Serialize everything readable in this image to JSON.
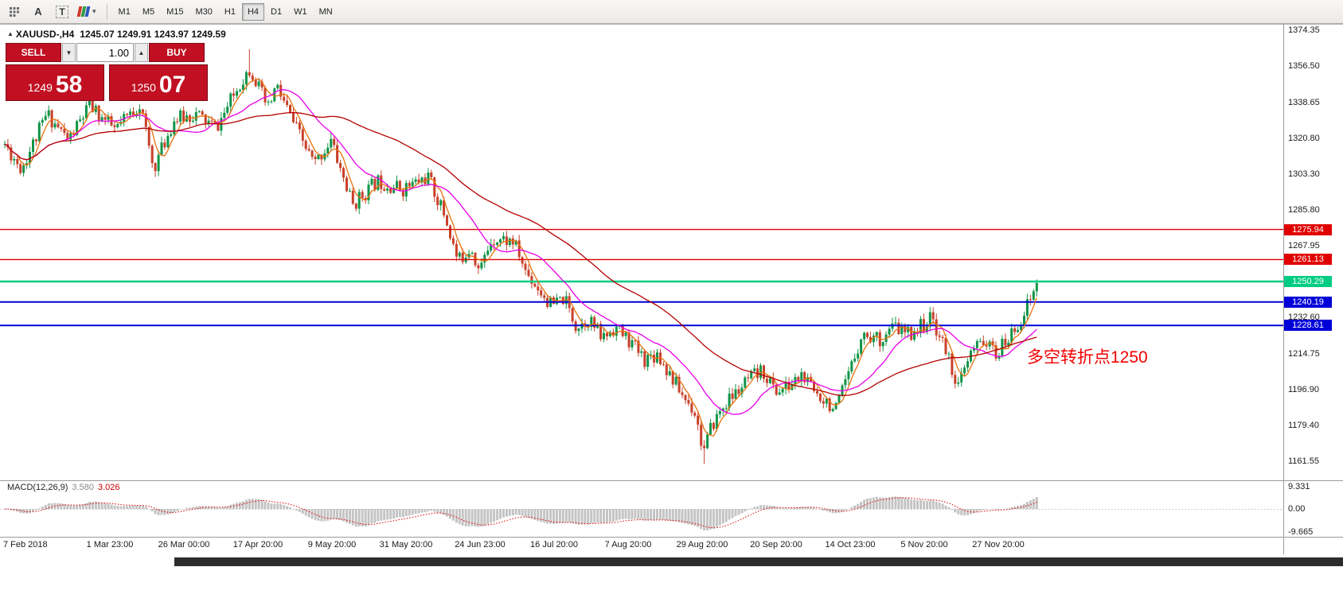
{
  "toolbar": {
    "pointer_label": "A",
    "text_label": "T",
    "timeframes": [
      "M1",
      "M5",
      "M15",
      "M30",
      "H1",
      "H4",
      "D1",
      "W1",
      "MN"
    ],
    "active_timeframe": "H4"
  },
  "header": {
    "symbol_text": "XAUUSD-,H4",
    "ohlc_text": "1245.07 1249.91 1243.97 1249.59"
  },
  "trade_panel": {
    "sell_label": "SELL",
    "buy_label": "BUY",
    "volume": "1.00",
    "bid_small": "1249",
    "bid_big": "58",
    "ask_small": "1250",
    "ask_big": "07"
  },
  "annotation": {
    "text": "多空转折点1250",
    "color": "#f20000"
  },
  "chart_data": {
    "type": "candlestick",
    "symbol": "XAUUSD-",
    "timeframe": "H4",
    "header_ohlc": {
      "open": 1245.07,
      "high": 1249.91,
      "low": 1243.97,
      "close": 1249.59
    },
    "last_close": 1249.59,
    "candle_count": 330,
    "colors": {
      "up": "#0f9447",
      "down": "#c8402a",
      "ma_fast": "#e8720e",
      "ma_mid": "#e800e8",
      "ma_slow": "#b40000",
      "hist": "#c4c4c4",
      "macd_signal": "#dd0000"
    },
    "y_axis": {
      "min": 1161.55,
      "max": 1374.35,
      "labels": [
        {
          "text": "1374.35",
          "price": 1374.35
        },
        {
          "text": "1356.50",
          "price": 1356.5
        },
        {
          "text": "1338.65",
          "price": 1338.65
        },
        {
          "text": "1320.80",
          "price": 1320.8
        },
        {
          "text": "1303.30",
          "price": 1303.3
        },
        {
          "text": "1285.80",
          "price": 1285.8
        },
        {
          "text": "1267.95",
          "price": 1267.95
        },
        {
          "text": "1232.60",
          "price": 1232.6
        },
        {
          "text": "1214.75",
          "price": 1214.75
        },
        {
          "text": "1196.90",
          "price": 1196.9
        },
        {
          "text": "1179.40",
          "price": 1179.4
        },
        {
          "text": "1161.55",
          "price": 1161.55
        }
      ]
    },
    "x_axis_labels": [
      "7 Feb 2018",
      "1 Mar 23:00",
      "26 Mar 00:00",
      "17 Apr 20:00",
      "9 May 20:00",
      "31 May 20:00",
      "24 Jun 23:00",
      "16 Jul 20:00",
      "7 Aug 20:00",
      "29 Aug 20:00",
      "20 Sep 20:00",
      "14 Oct 23:00",
      "5 Nov 20:00",
      "27 Nov 20:00"
    ],
    "levels": [
      {
        "label": "1275.94",
        "price": 1275.94,
        "color": "#e00000",
        "width": 1.4
      },
      {
        "label": "1261.13",
        "price": 1261.13,
        "color": "#e00000",
        "width": 1.4
      },
      {
        "label": "1250.29",
        "price": 1250.29,
        "color": "#00cc83",
        "width": 2.5
      },
      {
        "label": "1240.19",
        "price": 1240.19,
        "color": "#0000d8",
        "width": 2
      },
      {
        "label": "1228.61",
        "price": 1228.61,
        "color": "#0000d8",
        "width": 2
      }
    ],
    "moving_averages": [
      {
        "name": "fast",
        "window": 5,
        "color_key": "ma_fast"
      },
      {
        "name": "medium",
        "window": 18,
        "color_key": "ma_mid"
      },
      {
        "name": "slow",
        "window": 55,
        "color_key": "ma_slow"
      }
    ],
    "price_path": [
      [
        0.0,
        1318
      ],
      [
        0.016,
        1306
      ],
      [
        0.041,
        1333
      ],
      [
        0.062,
        1320
      ],
      [
        0.082,
        1337
      ],
      [
        0.107,
        1325
      ],
      [
        0.131,
        1338
      ],
      [
        0.144,
        1306
      ],
      [
        0.164,
        1330
      ],
      [
        0.185,
        1333
      ],
      [
        0.205,
        1326
      ],
      [
        0.23,
        1350
      ],
      [
        0.238,
        1356
      ],
      [
        0.255,
        1335
      ],
      [
        0.263,
        1347
      ],
      [
        0.283,
        1325
      ],
      [
        0.3,
        1308
      ],
      [
        0.316,
        1320
      ],
      [
        0.337,
        1288
      ],
      [
        0.361,
        1300
      ],
      [
        0.386,
        1296
      ],
      [
        0.41,
        1302
      ],
      [
        0.427,
        1282
      ],
      [
        0.439,
        1260
      ],
      [
        0.452,
        1268
      ],
      [
        0.46,
        1255
      ],
      [
        0.472,
        1272
      ],
      [
        0.493,
        1270
      ],
      [
        0.505,
        1255
      ],
      [
        0.517,
        1247
      ],
      [
        0.53,
        1238
      ],
      [
        0.542,
        1242
      ],
      [
        0.554,
        1228
      ],
      [
        0.566,
        1232
      ],
      [
        0.579,
        1222
      ],
      [
        0.591,
        1228
      ],
      [
        0.607,
        1220
      ],
      [
        0.62,
        1212
      ],
      [
        0.632,
        1215
      ],
      [
        0.644,
        1205
      ],
      [
        0.657,
        1194
      ],
      [
        0.669,
        1186
      ],
      [
        0.677,
        1166
      ],
      [
        0.686,
        1180
      ],
      [
        0.698,
        1190
      ],
      [
        0.71,
        1196
      ],
      [
        0.722,
        1202
      ],
      [
        0.735,
        1206
      ],
      [
        0.747,
        1196
      ],
      [
        0.759,
        1198
      ],
      [
        0.772,
        1204
      ],
      [
        0.784,
        1196
      ],
      [
        0.796,
        1192
      ],
      [
        0.805,
        1186
      ],
      [
        0.818,
        1204
      ],
      [
        0.83,
        1224
      ],
      [
        0.85,
        1222
      ],
      [
        0.862,
        1228
      ],
      [
        0.874,
        1224
      ],
      [
        0.887,
        1228
      ],
      [
        0.899,
        1232
      ],
      [
        0.915,
        1212
      ],
      [
        0.924,
        1198
      ],
      [
        0.936,
        1214
      ],
      [
        0.948,
        1222
      ],
      [
        0.96,
        1214
      ],
      [
        0.973,
        1222
      ],
      [
        0.985,
        1232
      ],
      [
        0.995,
        1243
      ],
      [
        1.0,
        1249.6
      ]
    ],
    "spikes": [
      {
        "frac": 0.238,
        "high": 1365.0
      },
      {
        "frac": 0.677,
        "low": 1160.3
      }
    ],
    "macd": {
      "label": "MACD(12,26,9)",
      "main_value": "3.580",
      "signal_value": "3.026",
      "axis_labels": [
        "9.331",
        "0.00",
        "-9.665"
      ]
    }
  }
}
